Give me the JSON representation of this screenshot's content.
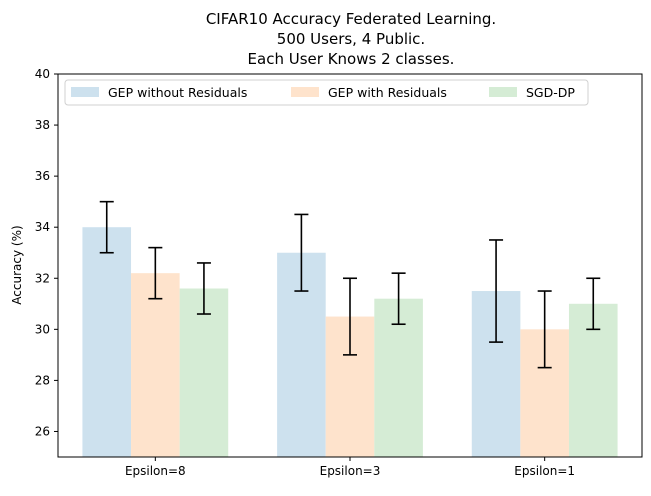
{
  "chart_data": {
    "type": "bar",
    "title_lines": [
      "CIFAR10 Accuracy Federated Learning.",
      "500 Users, 4 Public.",
      "Each User Knows 2 classes."
    ],
    "xlabel": "",
    "ylabel": "Accuracy (%)",
    "categories": [
      "Epsilon=8",
      "Epsilon=3",
      "Epsilon=1"
    ],
    "ylim": [
      25,
      40
    ],
    "yticks": [
      26,
      28,
      30,
      32,
      34,
      36,
      38,
      40
    ],
    "grid": false,
    "legend_position": "top",
    "series": [
      {
        "name": "GEP without Residuals",
        "color": "#cde1ee",
        "values": [
          34.0,
          33.0,
          31.5
        ],
        "errors": [
          1.0,
          1.5,
          2.0
        ]
      },
      {
        "name": "GEP with Residuals",
        "color": "#fee3cc",
        "values": [
          32.2,
          30.5,
          30.0
        ],
        "errors": [
          1.0,
          1.5,
          1.5
        ]
      },
      {
        "name": "SGD-DP",
        "color": "#d5ecd5",
        "values": [
          31.6,
          31.2,
          31.0
        ],
        "errors": [
          1.0,
          1.0,
          1.0
        ]
      }
    ]
  }
}
